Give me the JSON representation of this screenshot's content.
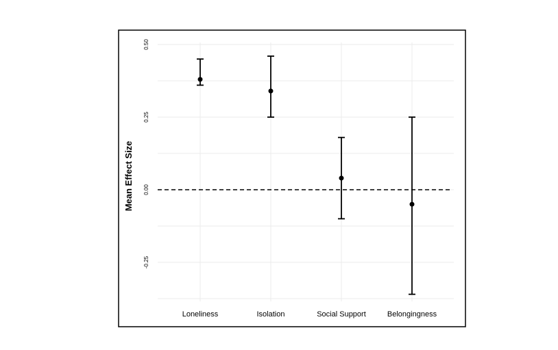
{
  "chart_data": {
    "type": "scatter",
    "categories": [
      "Loneliness",
      "Isolation",
      "Social Support",
      "Belongingness"
    ],
    "series": [
      {
        "values": [
          0.38,
          0.34,
          0.04,
          -0.05
        ],
        "lower": [
          0.36,
          0.25,
          -0.1,
          -0.36
        ],
        "upper": [
          0.45,
          0.46,
          0.18,
          0.25
        ]
      }
    ],
    "ylabel": "Mean  Effect  Size",
    "xlabel": "",
    "ylim": [
      -0.38,
      0.5
    ],
    "yticks": [
      "0.50",
      "0.25",
      "0.00",
      "-0.25"
    ],
    "reference_line": 0,
    "grid": true,
    "border": true,
    "colors": {
      "marks": "#000000",
      "grid": "#ebebeb",
      "border": "#000000"
    }
  }
}
